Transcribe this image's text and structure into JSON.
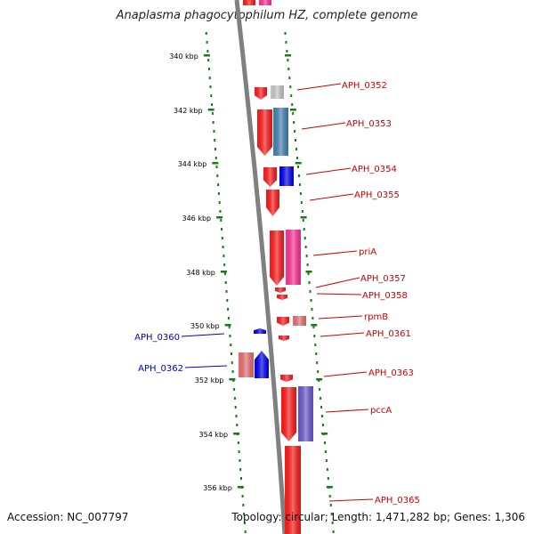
{
  "title": "Anaplasma phagocytophilum HZ, complete genome",
  "footer": {
    "accession": "Accession: NC_007797",
    "topology": "Topology: circular; Length: 1,471,282 bp; Genes: 1,306"
  },
  "ticks": [
    "340 kbp",
    "342 kbp",
    "344 kbp",
    "346 kbp",
    "348 kbp",
    "350 kbp",
    "352 kbp",
    "354 kbp",
    "356 kbp"
  ],
  "gene_labels": [
    {
      "name": "APH_0352",
      "strand": "forward"
    },
    {
      "name": "APH_0353",
      "strand": "forward"
    },
    {
      "name": "APH_0354",
      "strand": "forward"
    },
    {
      "name": "APH_0355",
      "strand": "forward"
    },
    {
      "name": "priA",
      "strand": "forward"
    },
    {
      "name": "APH_0357",
      "strand": "forward"
    },
    {
      "name": "APH_0358",
      "strand": "forward"
    },
    {
      "name": "rpmB",
      "strand": "forward"
    },
    {
      "name": "APH_0361",
      "strand": "forward"
    },
    {
      "name": "APH_0363",
      "strand": "forward"
    },
    {
      "name": "pccA",
      "strand": "forward"
    },
    {
      "name": "APH_0365",
      "strand": "forward"
    },
    {
      "name": "APH_0360",
      "strand": "reverse"
    },
    {
      "name": "APH_0362",
      "strand": "reverse"
    }
  ],
  "colors": {
    "forward_label": "#cc0000",
    "reverse_label": "#0000cc",
    "backbone": "#808080",
    "dots": "#1a7a1a",
    "gene_red": "#ff1a1a",
    "gene_blue": "#0000ee",
    "gene_steel": "#4682b4",
    "gene_pink": "#ff3399",
    "gene_salmon": "#e87070",
    "gene_gray": "#c8c8c8",
    "gene_purple": "#6a5acd"
  }
}
